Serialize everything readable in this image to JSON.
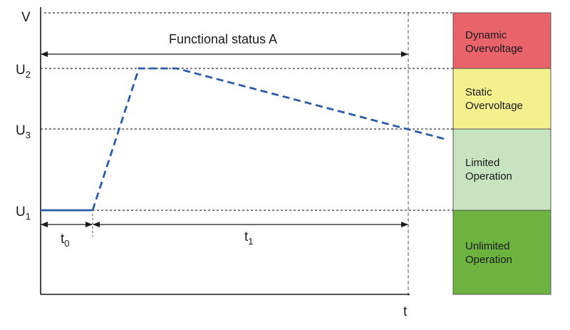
{
  "axes": {
    "y_label": "V",
    "x_label": "t"
  },
  "levels": [
    {
      "main": "U",
      "sub": "2"
    },
    {
      "main": "U",
      "sub": "3"
    },
    {
      "main": "U",
      "sub": "1"
    }
  ],
  "status": {
    "label": "Functional status A"
  },
  "intervals": [
    {
      "main": "t",
      "sub": "0"
    },
    {
      "main": "t",
      "sub": "1"
    }
  ],
  "zones": [
    {
      "line1": "Dynamic",
      "line2": "Overvoltage",
      "color": "#e8636a"
    },
    {
      "line1": "Static",
      "line2": "Overvoltage",
      "color": "#f5f08e"
    },
    {
      "line1": "Limited",
      "line2": "Operation",
      "color": "#c8e3c0"
    },
    {
      "line1": "Unlimited",
      "line2": "Operation",
      "color": "#6db33f"
    }
  ],
  "colors": {
    "signal": "#2a5ca8",
    "axis": "#1a1a1a",
    "guide": "#333333"
  }
}
